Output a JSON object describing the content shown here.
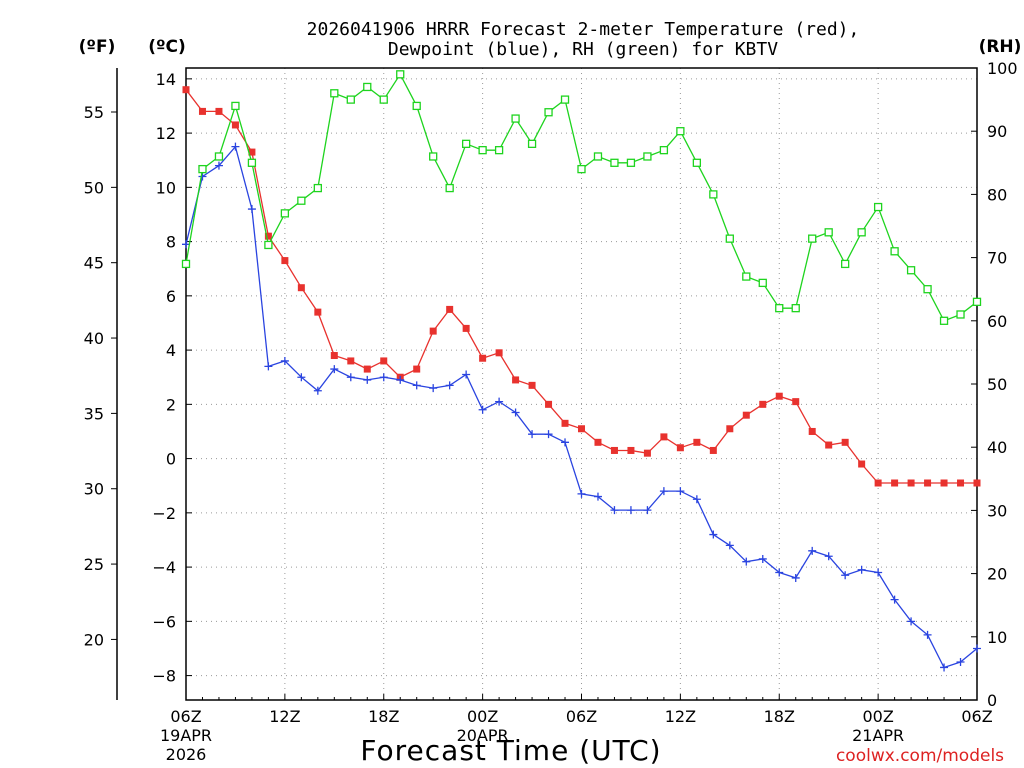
{
  "chart_data": {
    "type": "line",
    "title_line1": "2026041906 HRRR Forecast 2-meter Temperature (red),",
    "title_line2": "Dewpoint (blue), RH (green) for KBTV",
    "xlabel": "Forecast Time (UTC)",
    "unit_f": "(ºF)",
    "unit_c": "(ºC)",
    "unit_rh": "(RH)",
    "watermark": "coolwx.com/models",
    "x_range_hours": [
      0,
      48
    ],
    "ylim_c": [
      -8.9,
      14.4
    ],
    "ylim_rh": [
      0,
      100
    ],
    "c_ticks": [
      14,
      12,
      10,
      8,
      6,
      4,
      2,
      0,
      -2,
      -4,
      -6,
      -8
    ],
    "f_ticks": [
      55,
      50,
      45,
      40,
      35,
      30,
      25,
      20
    ],
    "rh_ticks": [
      100,
      90,
      80,
      70,
      60,
      50,
      40,
      30,
      20,
      10,
      0
    ],
    "x_ticks": [
      {
        "h": 0,
        "label": "06Z",
        "date": "19APR",
        "year": "2026"
      },
      {
        "h": 6,
        "label": "12Z"
      },
      {
        "h": 12,
        "label": "18Z"
      },
      {
        "h": 18,
        "label": "00Z",
        "date": "20APR"
      },
      {
        "h": 24,
        "label": "06Z"
      },
      {
        "h": 30,
        "label": "12Z"
      },
      {
        "h": 36,
        "label": "18Z"
      },
      {
        "h": 42,
        "label": "00Z",
        "date": "21APR"
      },
      {
        "h": 48,
        "label": "06Z"
      }
    ],
    "series": [
      {
        "name": "Temperature (°C)",
        "color": "#e8322e",
        "marker": "filled-square",
        "axis": "celsius",
        "values": [
          13.6,
          12.8,
          12.8,
          12.3,
          11.3,
          8.2,
          7.3,
          6.3,
          5.4,
          3.8,
          3.6,
          3.3,
          3.6,
          3.0,
          3.3,
          4.7,
          5.5,
          4.8,
          3.7,
          3.9,
          2.9,
          2.7,
          2.0,
          1.3,
          1.1,
          0.6,
          0.3,
          0.3,
          0.2,
          0.8,
          0.4,
          0.6,
          0.3,
          1.1,
          1.6,
          2.0,
          2.3,
          2.1,
          1.0,
          0.5,
          0.6,
          -0.2,
          -0.9,
          -0.9,
          -0.9,
          -0.9,
          -0.9,
          -0.9,
          -0.9
        ]
      },
      {
        "name": "Dewpoint (°C)",
        "color": "#2a44e0",
        "marker": "plus",
        "axis": "celsius",
        "values": [
          7.9,
          10.4,
          10.8,
          11.5,
          9.2,
          3.4,
          3.6,
          3.0,
          2.5,
          3.3,
          3.0,
          2.9,
          3.0,
          2.9,
          2.7,
          2.6,
          2.7,
          3.1,
          1.8,
          2.1,
          1.7,
          0.9,
          0.9,
          0.6,
          -1.3,
          -1.4,
          -1.9,
          -1.9,
          -1.9,
          -1.2,
          -1.2,
          -1.5,
          -2.8,
          -3.2,
          -3.8,
          -3.7,
          -4.2,
          -4.4,
          -3.4,
          -3.6,
          -4.3,
          -4.1,
          -4.2,
          -5.2,
          -6.0,
          -6.5,
          -7.7,
          -7.5,
          -7.0
        ]
      },
      {
        "name": "Relative Humidity (%)",
        "color": "#1ed41e",
        "marker": "hollow-square",
        "axis": "rh",
        "values": [
          69,
          84,
          86,
          94,
          85,
          72,
          77,
          79,
          81,
          96,
          95,
          97,
          95,
          99,
          94,
          86,
          81,
          88,
          87,
          87,
          92,
          88,
          93,
          95,
          84,
          86,
          85,
          85,
          86,
          87,
          90,
          85,
          80,
          73,
          67,
          66,
          62,
          62,
          73,
          74,
          69,
          74,
          78,
          71,
          68,
          65,
          60,
          61,
          63
        ]
      }
    ]
  }
}
